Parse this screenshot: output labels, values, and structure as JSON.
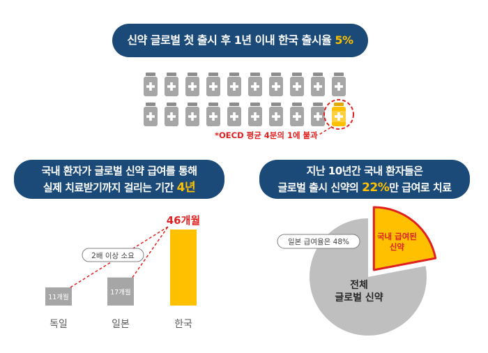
{
  "headline_top": {
    "text": "신약 글로벌 첫 출시 후 1년 이내 한국 출시율 ",
    "highlight": "5%"
  },
  "bottle_note": "*OECD 평균 4분의 1에 불과",
  "bottles": {
    "total": 20,
    "highlighted": 1
  },
  "headline_left": {
    "line1": "국내 환자가 글로벌 신약 급여를 통해",
    "line2": "실제 치료받기까지 걸리는 기간 ",
    "highlight": "4년"
  },
  "headline_right": {
    "line1": "지난 10년간 국내 환자들은",
    "line2a": "글로벌 출시 신약의 ",
    "highlight": "22%",
    "line2b": "만 급여로 치료"
  },
  "colors": {
    "navy": "#1b4a78",
    "gold": "#ffc000",
    "gray_bar": "#a6a6a6",
    "red": "#e02020",
    "pie_gray": "#bfbfbf",
    "bottle_gray": "#a6a6a6"
  },
  "chart_data": [
    {
      "type": "bar",
      "categories": [
        "독일",
        "일본",
        "한국"
      ],
      "values": [
        11,
        17,
        46
      ],
      "value_labels": [
        "11개월",
        "17개월",
        "46개월"
      ],
      "annotation": "2배 이상 소요",
      "ylim": [
        0,
        46
      ]
    },
    {
      "type": "pie",
      "slices": [
        {
          "label": "국내 급여된 신약",
          "value": 22
        },
        {
          "label": "전체 글로벌 신약",
          "value": 78
        }
      ],
      "callout": "일본 급여율은 48%"
    }
  ]
}
